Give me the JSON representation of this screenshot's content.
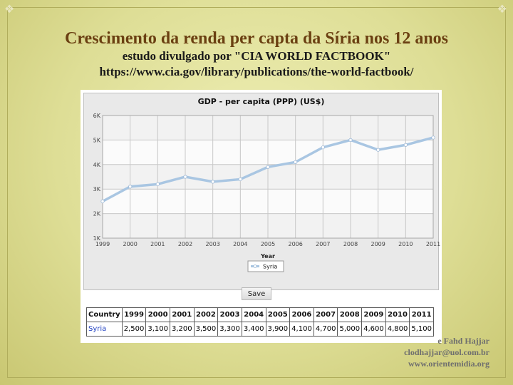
{
  "slide": {
    "title": "Crescimento da renda per capta da Síria nos 12 anos",
    "subtitle": "estudo divulgado por \"CIA WORLD FACTBOOK\"",
    "url": "https://www.cia.gov/library/publications/the-world-factbook/",
    "footer_lines": [
      "e Fahd Hajjar",
      "clodhajjar@uol.com.br",
      "www.orientemidia.org"
    ]
  },
  "buttons": {
    "save_label": "Save"
  },
  "chart_data": {
    "type": "line",
    "title": "GDP - per capita (PPP) (US$)",
    "xlabel": "Year",
    "ylabel": "",
    "x": [
      "1999",
      "2000",
      "2001",
      "2002",
      "2003",
      "2004",
      "2005",
      "2006",
      "2007",
      "2008",
      "2009",
      "2010",
      "2011"
    ],
    "series": [
      {
        "name": "Syria",
        "values": [
          2500,
          3100,
          3200,
          3500,
          3300,
          3400,
          3900,
          4100,
          4700,
          5000,
          4600,
          4800,
          5100
        ]
      }
    ],
    "ylim": [
      1000,
      6000
    ],
    "yticks": [
      1000,
      2000,
      3000,
      4000,
      5000,
      6000
    ],
    "ytick_labels": [
      "1K",
      "2K",
      "3K",
      "4K",
      "5K",
      "6K"
    ],
    "grid": true,
    "legend": "bottom-center",
    "colors": {
      "line": "#a9c6e2",
      "point": "#ffffff",
      "band": "#f2f2f2",
      "background": "#e9e9e9"
    }
  },
  "table": {
    "header_label": "Country",
    "years": [
      "1999",
      "2000",
      "2001",
      "2002",
      "2003",
      "2004",
      "2005",
      "2006",
      "2007",
      "2008",
      "2009",
      "2010",
      "2011"
    ],
    "rows": [
      {
        "country": "Syria",
        "values": [
          "2,500",
          "3,100",
          "3,200",
          "3,500",
          "3,300",
          "3,400",
          "3,900",
          "4,100",
          "4,700",
          "5,000",
          "4,600",
          "4,800",
          "5,100"
        ]
      }
    ]
  }
}
